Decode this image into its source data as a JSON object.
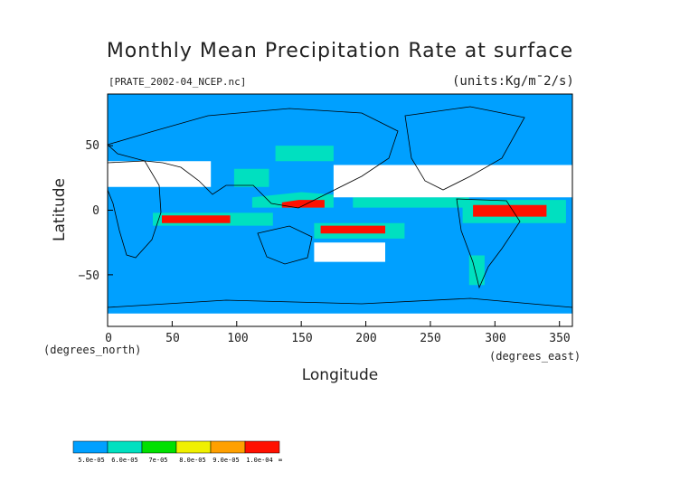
{
  "title": "Monthly Mean Precipitation Rate at surface",
  "filename": "[PRATE_2002-04_NCEP.nc]",
  "units": "(units:Kg/m¯2/s)",
  "xlabel": "Longitude",
  "ylabel": "Latitude",
  "xunit_note": "(degrees_east)",
  "yunit_note": "(degrees_north)",
  "map_data": {
    "type": "gridded-map",
    "projection": "equirectangular",
    "x_ticks": [
      "0",
      "50",
      "100",
      "150",
      "200",
      "250",
      "300",
      "350"
    ],
    "y_ticks": [
      "50",
      "0",
      "−50"
    ],
    "x_range": [
      0,
      360
    ],
    "y_range": [
      -90,
      90
    ],
    "background_color": "#00a0ff",
    "missing_color": "#ffffff",
    "colorbar": {
      "labels": [
        "5.0e-05",
        "6.0e-05",
        "7e-05",
        "8.0e-05",
        "9.0e-05",
        "1.0e-04",
        "∞"
      ],
      "colors": [
        "#00a0ff",
        "#00e0c0",
        "#00e000",
        "#f0f000",
        "#ffa000",
        "#ff1000"
      ]
    },
    "regions": [
      {
        "level": 1,
        "points": [
          [
            112,
            2
          ],
          [
            175,
            2
          ],
          [
            175,
            12
          ],
          [
            150,
            14
          ],
          [
            112,
            10
          ]
        ]
      },
      {
        "level": 5,
        "points": [
          [
            135,
            2
          ],
          [
            168,
            2
          ],
          [
            168,
            8
          ],
          [
            148,
            8
          ],
          [
            135,
            6
          ]
        ]
      },
      {
        "level": 1,
        "points": [
          [
            190,
            2
          ],
          [
            280,
            2
          ],
          [
            280,
            10
          ],
          [
            190,
            10
          ]
        ]
      },
      {
        "level": 1,
        "points": [
          [
            35,
            -12
          ],
          [
            128,
            -12
          ],
          [
            128,
            -2
          ],
          [
            35,
            -2
          ]
        ]
      },
      {
        "level": 5,
        "points": [
          [
            42,
            -10
          ],
          [
            95,
            -10
          ],
          [
            95,
            -4
          ],
          [
            42,
            -4
          ]
        ]
      },
      {
        "level": 1,
        "points": [
          [
            160,
            -22
          ],
          [
            230,
            -22
          ],
          [
            230,
            -10
          ],
          [
            160,
            -10
          ]
        ]
      },
      {
        "level": 5,
        "points": [
          [
            165,
            -18
          ],
          [
            215,
            -18
          ],
          [
            215,
            -12
          ],
          [
            165,
            -12
          ]
        ]
      },
      {
        "level": 1,
        "points": [
          [
            275,
            -10
          ],
          [
            355,
            -10
          ],
          [
            355,
            8
          ],
          [
            275,
            8
          ]
        ]
      },
      {
        "level": 5,
        "points": [
          [
            283,
            -5
          ],
          [
            340,
            -5
          ],
          [
            340,
            4
          ],
          [
            283,
            4
          ]
        ]
      },
      {
        "level": 1,
        "points": [
          [
            280,
            -58
          ],
          [
            292,
            -58
          ],
          [
            292,
            -35
          ],
          [
            280,
            -35
          ]
        ]
      },
      {
        "level": 1,
        "points": [
          [
            98,
            18
          ],
          [
            125,
            18
          ],
          [
            125,
            32
          ],
          [
            98,
            32
          ]
        ]
      },
      {
        "level": 1,
        "points": [
          [
            130,
            38
          ],
          [
            175,
            38
          ],
          [
            175,
            50
          ],
          [
            130,
            50
          ]
        ]
      },
      {
        "level": 0,
        "points": [
          [
            0,
            18
          ],
          [
            80,
            18
          ],
          [
            80,
            38
          ],
          [
            0,
            38
          ]
        ]
      },
      {
        "level": 0,
        "points": [
          [
            175,
            10
          ],
          [
            360,
            10
          ],
          [
            360,
            35
          ],
          [
            175,
            35
          ]
        ]
      },
      {
        "level": 0,
        "points": [
          [
            0,
            -80
          ],
          [
            360,
            -80
          ],
          [
            360,
            -90
          ],
          [
            0,
            -90
          ]
        ]
      },
      {
        "level": 0,
        "points": [
          [
            160,
            -25
          ],
          [
            215,
            -25
          ],
          [
            215,
            -40
          ],
          [
            160,
            -40
          ]
        ]
      }
    ]
  }
}
